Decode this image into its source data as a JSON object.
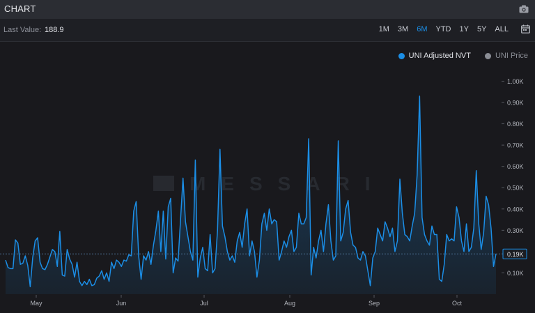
{
  "header": {
    "title": "CHART",
    "camera_icon": "camera-icon"
  },
  "toolbar": {
    "last_value_label": "Last Value:",
    "last_value": "188.9",
    "ranges": [
      "1M",
      "3M",
      "6M",
      "YTD",
      "1Y",
      "5Y",
      "ALL"
    ],
    "active_range": "6M",
    "calendar_icon": "calendar-icon"
  },
  "legend": {
    "items": [
      {
        "label": "UNI Adjusted NVT",
        "color": "#1b8ee6",
        "active": true
      },
      {
        "label": "UNI Price",
        "color": "#8a8d95",
        "active": false
      }
    ]
  },
  "watermark": "MESSARI",
  "chart_data": {
    "type": "area",
    "series": [
      {
        "name": "UNI Adjusted NVT",
        "color": "#1b8ee6",
        "values": [
          160,
          125,
          120,
          120,
          255,
          240,
          140,
          145,
          180,
          135,
          35,
          170,
          250,
          265,
          150,
          120,
          115,
          140,
          175,
          210,
          200,
          130,
          295,
          90,
          85,
          210,
          165,
          140,
          80,
          150,
          60,
          40,
          60,
          45,
          70,
          40,
          45,
          75,
          85,
          110,
          70,
          100,
          60,
          150,
          120,
          160,
          150,
          130,
          160,
          155,
          185,
          180,
          390,
          435,
          180,
          70,
          180,
          160,
          200,
          140,
          230,
          300,
          390,
          200,
          390,
          165,
          410,
          450,
          100,
          170,
          155,
          350,
          545,
          340,
          270,
          200,
          160,
          630,
          80,
          170,
          220,
          120,
          110,
          280,
          100,
          120,
          300,
          680,
          320,
          270,
          200,
          160,
          180,
          150,
          250,
          290,
          220,
          330,
          400,
          180,
          250,
          200,
          80,
          160,
          330,
          380,
          300,
          400,
          330,
          350,
          340,
          160,
          200,
          250,
          220,
          270,
          300,
          200,
          220,
          380,
          330,
          330,
          360,
          730,
          90,
          220,
          170,
          250,
          300,
          200,
          330,
          420,
          250,
          160,
          180,
          720,
          250,
          290,
          400,
          440,
          290,
          230,
          220,
          170,
          160,
          200,
          180,
          110,
          40,
          170,
          200,
          310,
          280,
          250,
          340,
          310,
          270,
          310,
          200,
          250,
          540,
          380,
          280,
          270,
          250,
          320,
          380,
          560,
          930,
          360,
          280,
          250,
          230,
          320,
          280,
          280,
          70,
          60,
          140,
          280,
          250,
          260,
          250,
          410,
          360,
          250,
          200,
          330,
          200,
          220,
          310,
          580,
          330,
          210,
          290,
          460,
          420,
          310,
          130,
          190
        ],
        "last_value": 188.9
      }
    ],
    "x_ticks": [
      "May",
      "Jun",
      "Jul",
      "Aug",
      "Sep",
      "Oct"
    ],
    "y_ticks": [
      "0.10K",
      "0.19K",
      "0.30K",
      "0.40K",
      "0.50K",
      "0.60K",
      "0.70K",
      "0.80K",
      "0.90K",
      "1.00K"
    ],
    "y_tick_values": [
      100,
      188.9,
      300,
      400,
      500,
      600,
      700,
      800,
      900,
      1000
    ],
    "ylim": [
      0,
      1000
    ],
    "grid": false,
    "legend_position": "top-right"
  }
}
